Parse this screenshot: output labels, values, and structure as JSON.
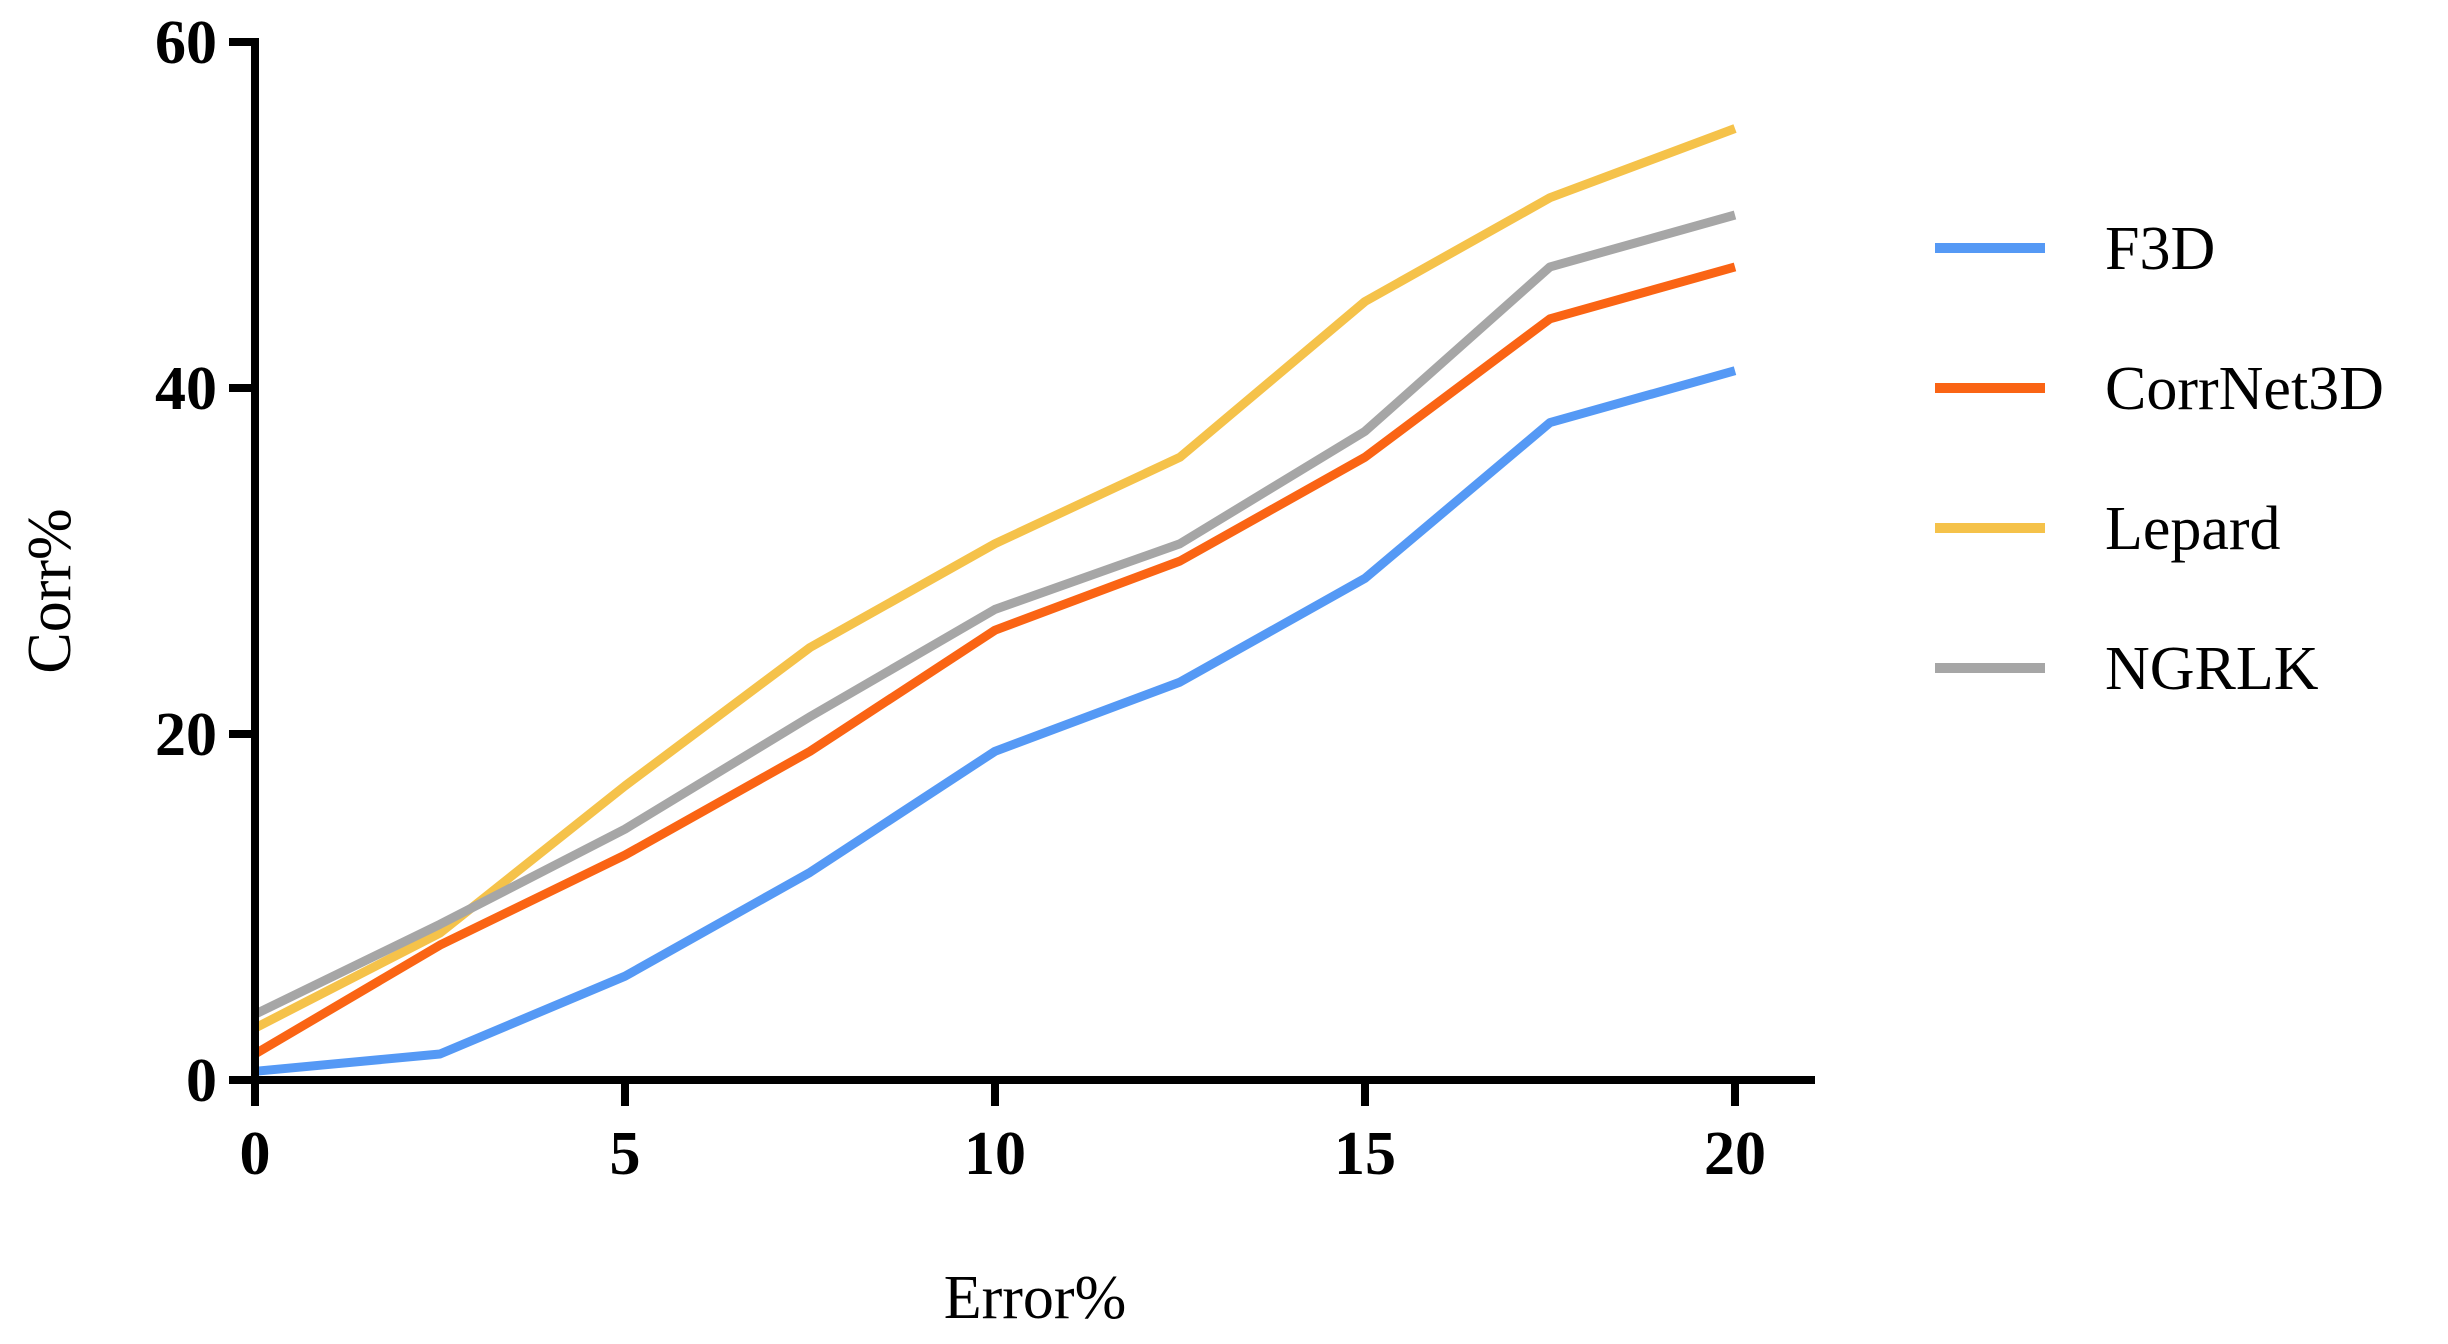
{
  "chart_data": {
    "type": "line",
    "title": "",
    "xlabel": "Error%",
    "ylabel": "Corr%",
    "xlim": [
      0,
      20
    ],
    "ylim": [
      0,
      60
    ],
    "xticks": [
      0,
      5,
      10,
      15,
      20
    ],
    "yticks": [
      0,
      20,
      40,
      60
    ],
    "x": [
      0,
      2.5,
      5,
      7.5,
      10,
      12.5,
      15,
      17.5,
      20
    ],
    "grid": false,
    "legend_position": "right",
    "series": [
      {
        "name": "F3D",
        "color": "#5599f5",
        "values": [
          0.5,
          1.5,
          6,
          12,
          19,
          23,
          29,
          38,
          41
        ]
      },
      {
        "name": "CorrNet3D",
        "color": "#fa6414",
        "values": [
          1.5,
          7.8,
          13,
          19,
          26,
          30,
          36,
          44,
          47
        ]
      },
      {
        "name": "Lepard",
        "color": "#f5c24a",
        "values": [
          3,
          8.5,
          17,
          25,
          31,
          36,
          45,
          51,
          55
        ]
      },
      {
        "name": "NGRLK",
        "color": "#a6a6a6",
        "values": [
          3.8,
          9,
          14.5,
          21,
          27.2,
          31,
          37.5,
          47,
          50
        ]
      }
    ]
  }
}
